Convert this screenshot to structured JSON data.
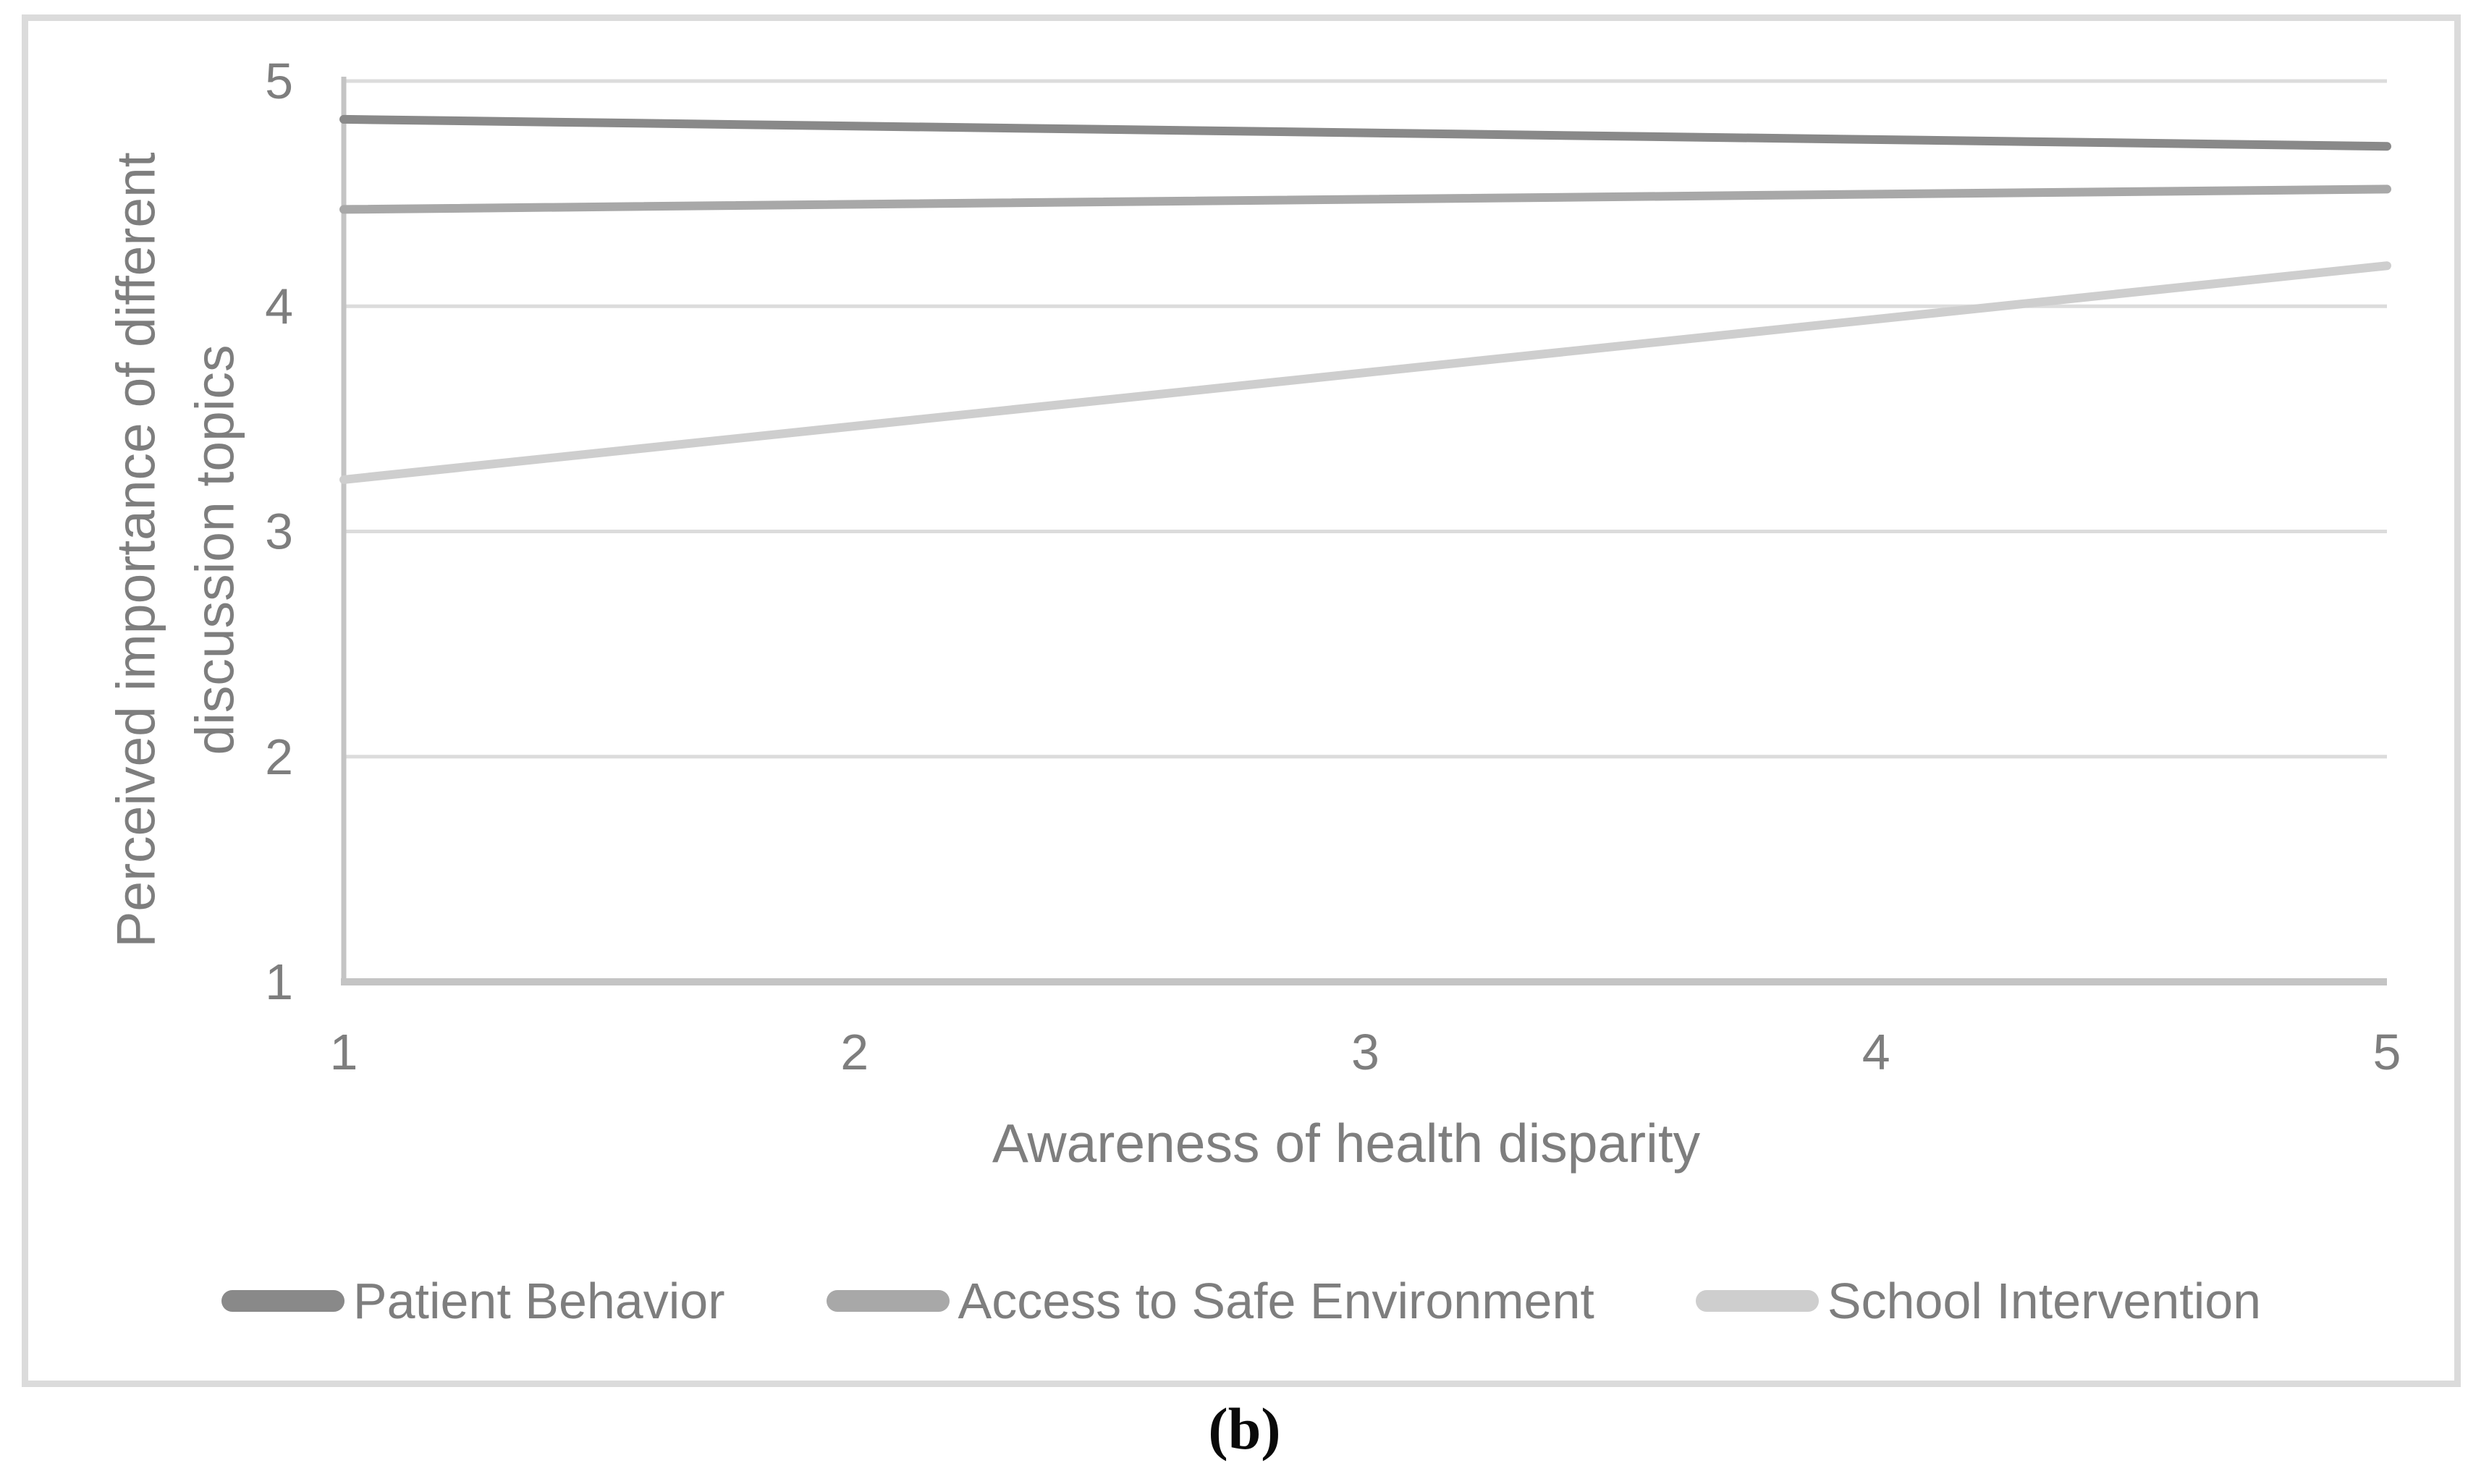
{
  "figure": {
    "caption": "(b)",
    "colors": {
      "border": "#dbdbdb",
      "gridline": "#dcdcdc",
      "axis_line": "#c4c4c4",
      "text": "#7e7e7e",
      "caption_text": "#0a0a0a"
    }
  },
  "chart_data": {
    "type": "line",
    "title": "",
    "xlabel": "Awareness of health disparity",
    "ylabel": "Perceived importance of different discussion topics",
    "x": [
      1,
      5
    ],
    "xlim": [
      1,
      5
    ],
    "ylim": [
      1,
      5
    ],
    "xticks": [
      1,
      2,
      3,
      4,
      5
    ],
    "yticks": [
      1,
      2,
      3,
      4,
      5
    ],
    "grid": "horizontal gridlines at y = 2,3,4,5",
    "legend_position": "bottom",
    "series": [
      {
        "name": "Patient Behavior",
        "color": "#898989",
        "values": [
          4.83,
          4.71
        ]
      },
      {
        "name": "Access to Safe Environment",
        "color": "#a8a8a8",
        "values": [
          4.43,
          4.52
        ]
      },
      {
        "name": "School Intervention",
        "color": "#cecece",
        "values": [
          3.23,
          4.18
        ]
      }
    ]
  }
}
